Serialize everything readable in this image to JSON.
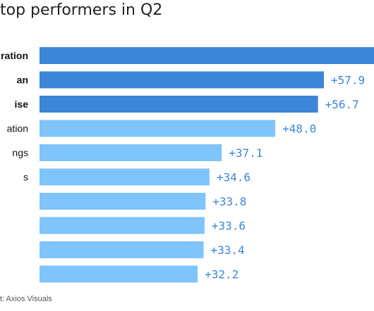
{
  "title": "top performers in Q2",
  "credit": "t: Axios Visuals",
  "colors": {
    "highlight": "#3b86d9",
    "normal": "#7fc4fb",
    "value_text": "#3b86d9",
    "label_text": "#111111"
  },
  "chart_data": {
    "type": "bar",
    "orientation": "horizontal",
    "categories": [
      "ration",
      "an",
      "ise",
      "ation",
      "ngs",
      "s",
      "",
      "",
      "",
      ""
    ],
    "values": [
      68.1,
      57.9,
      56.7,
      48.0,
      37.1,
      34.6,
      33.8,
      33.6,
      33.4,
      32.2
    ],
    "value_labels": [
      "",
      "+57.9",
      "+56.7",
      "+48.0",
      "+37.1",
      "+34.6",
      "+33.8",
      "+33.6",
      "+33.4",
      "+32.2"
    ],
    "highlighted": [
      true,
      true,
      true,
      false,
      false,
      false,
      false,
      false,
      false,
      false
    ],
    "xlim": [
      0,
      68.1
    ],
    "grid": false,
    "legend": "none"
  }
}
